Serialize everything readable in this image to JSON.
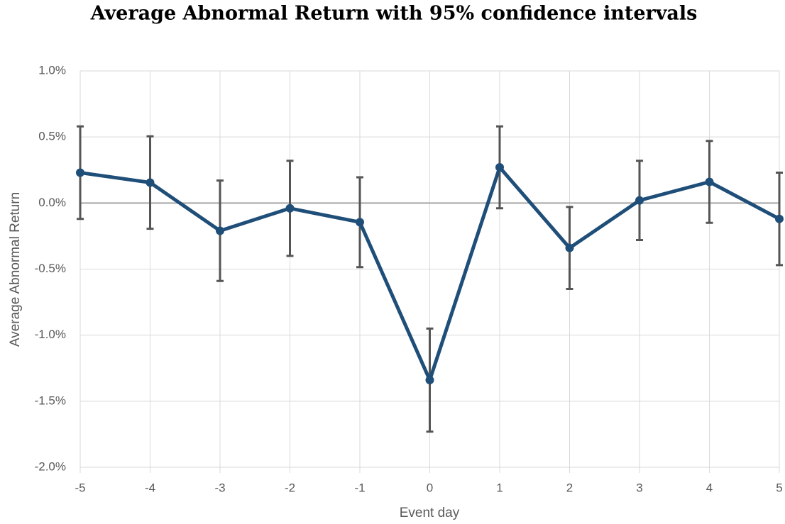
{
  "chart_data": {
    "type": "line",
    "title": "Average Abnormal Return with 95% confidence intervals",
    "x_label": "Event day",
    "y_label": "Average Abnormal Return",
    "x": [
      -5,
      -4,
      -3,
      -2,
      -1,
      0,
      1,
      2,
      3,
      4,
      5
    ],
    "values": [
      0.23,
      0.155,
      -0.21,
      -0.04,
      -0.145,
      -1.34,
      0.27,
      -0.34,
      0.02,
      0.16,
      -0.12
    ],
    "errors": [
      0.35,
      0.35,
      0.38,
      0.36,
      0.34,
      0.39,
      0.31,
      0.31,
      0.3,
      0.31,
      0.35
    ],
    "color": "#1f4e79",
    "error_color": "#555555",
    "xlim": [
      -5,
      5
    ],
    "xticks": [
      -5,
      -4,
      -3,
      -2,
      -1,
      0,
      1,
      2,
      3,
      4,
      5
    ],
    "ylim": [
      -2,
      1
    ],
    "yticks": [
      {
        "value": -2,
        "label": "-2.0%"
      },
      {
        "value": -1.5,
        "label": "-1.5%"
      },
      {
        "value": -1,
        "label": "-1.0%"
      },
      {
        "value": -0.5,
        "label": "-0.5%"
      },
      {
        "value": 0,
        "label": "0.0%"
      },
      {
        "value": 0.5,
        "label": "0.5%"
      },
      {
        "value": 1,
        "label": "1.0%"
      }
    ],
    "grid": true
  }
}
